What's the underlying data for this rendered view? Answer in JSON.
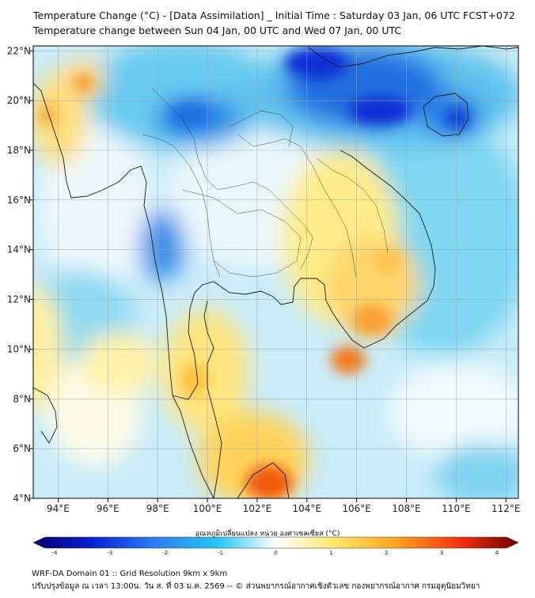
{
  "title_line1": "Temperature Change (°C) - [Data Assimilation] _ Initial Time : Saturday 03 Jan, 06 UTC FCST+072",
  "title_line2": "Temperature change between Sun 04 Jan, 00 UTC and Wed 07 Jan, 00 UTC",
  "map": {
    "lon_range": [
      93,
      112.5
    ],
    "lat_range": [
      4,
      22.2
    ],
    "lon_ticks": [
      "94°E",
      "96°E",
      "98°E",
      "100°E",
      "102°E",
      "104°E",
      "106°E",
      "108°E",
      "110°E",
      "112°E"
    ],
    "lat_ticks": [
      "4°N",
      "6°N",
      "8°N",
      "10°N",
      "12°N",
      "14°N",
      "16°N",
      "18°N",
      "20°N",
      "22°N"
    ]
  },
  "colorbar": {
    "title": "อุณหภูมิเปลี่ยนแปลง หน่วย องศาเซลเซียส (°C)",
    "tick_labels": [
      "-4",
      "-3",
      "-2",
      "-1",
      "0",
      "1",
      "2",
      "3",
      "4"
    ],
    "range": [
      -4,
      4
    ],
    "colors": [
      "#08006e",
      "#0a1fd0",
      "#2c7cf0",
      "#27c6f4",
      "#ffffff",
      "#ffe86a",
      "#ffa21c",
      "#f53010",
      "#6e0000"
    ]
  },
  "footer_line1": "WRF-DA Domain 01 :: Grid Resolution 9km x 9km",
  "footer_line2": "ปรับปรุงข้อมูล ณ เวลา 13:00น. วัน ส. ที่ 03 ม.ค. 2569 -- © ส่วนพยากรณ์อากาศเชิงตัวเลข กองพยากรณ์อากาศ กรมอุตุนิยมวิทยา"
}
